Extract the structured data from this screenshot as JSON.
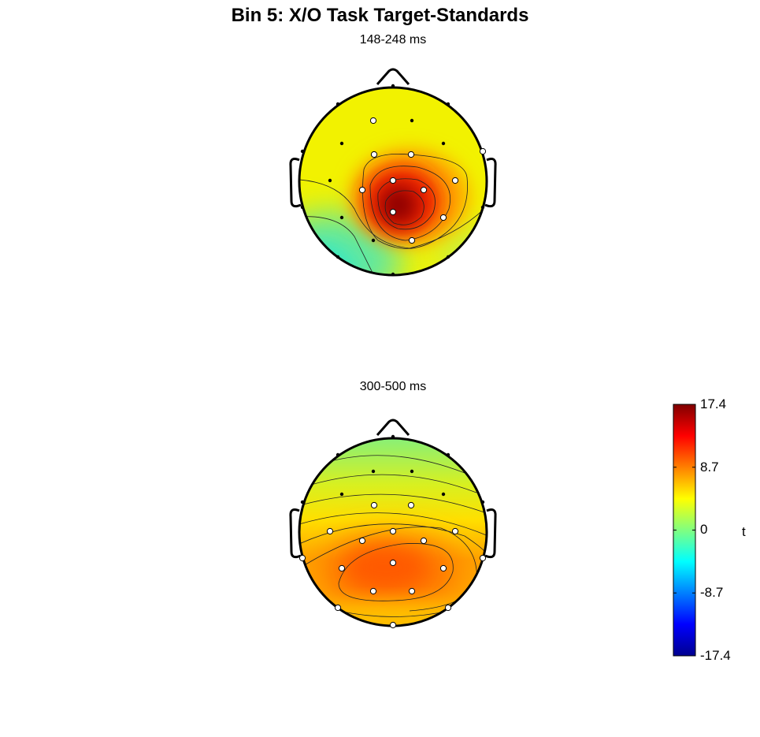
{
  "chart_data": {
    "type": "heatmap",
    "subtype": "scalp-topography",
    "title": "Bin 5: X/O Task Target-Standards",
    "maps": [
      {
        "subtitle": "148-248 ms",
        "peak": "central-parietal midline, strongly positive (~17 t)",
        "electrode_significant": [
          false,
          false,
          false,
          true,
          false,
          false,
          false,
          false,
          true,
          true,
          true,
          false,
          true,
          true,
          true,
          true,
          false,
          false,
          false,
          true,
          true,
          false,
          true,
          false,
          false,
          false
        ]
      },
      {
        "subtitle": "300-500 ms",
        "peak": "broad parietal positivity (~11 t)",
        "electrode_significant": [
          false,
          false,
          false,
          false,
          false,
          false,
          false,
          false,
          false,
          true,
          true,
          true,
          true,
          true,
          true,
          true,
          true,
          true,
          true,
          true,
          true,
          true,
          true,
          true,
          true,
          true
        ]
      }
    ],
    "colorbar": {
      "label": "t",
      "range": [
        -17.4,
        17.4
      ],
      "ticks": [
        "17.4",
        "8.7",
        "0",
        "-8.7",
        "-17.4"
      ],
      "colormap": "jet"
    }
  }
}
